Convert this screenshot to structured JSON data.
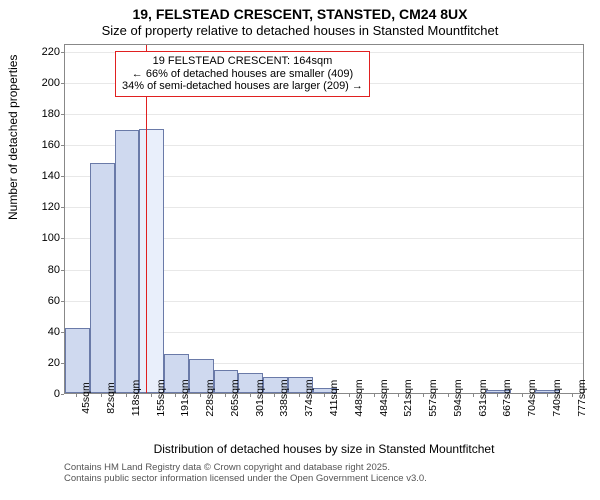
{
  "title_main": "19, FELSTEAD CRESCENT, STANSTED, CM24 8UX",
  "title_sub": "Size of property relative to detached houses in Stansted Mountfitchet",
  "y_axis_label": "Number of detached properties",
  "x_axis_label": "Distribution of detached houses by size in Stansted Mountfitchet",
  "footer_line1": "Contains HM Land Registry data © Crown copyright and database right 2025.",
  "footer_line2": "Contains public sector information licensed under the Open Government Licence v3.0.",
  "chart": {
    "type": "histogram",
    "background_color": "#ffffff",
    "grid_color": "#e8e8e8",
    "axis_color": "#888888",
    "ylim": [
      0,
      225
    ],
    "ytick_step": 20,
    "yticks": [
      0,
      20,
      40,
      60,
      80,
      100,
      120,
      140,
      160,
      180,
      200,
      220
    ],
    "x_categories": [
      "45sqm",
      "82sqm",
      "118sqm",
      "155sqm",
      "191sqm",
      "228sqm",
      "265sqm",
      "301sqm",
      "338sqm",
      "374sqm",
      "411sqm",
      "448sqm",
      "484sqm",
      "521sqm",
      "557sqm",
      "594sqm",
      "631sqm",
      "667sqm",
      "704sqm",
      "740sqm",
      "777sqm"
    ],
    "x_bin_width": 36.5,
    "x_start": 45,
    "values": [
      42,
      148,
      169,
      170,
      25,
      22,
      15,
      13,
      10,
      10,
      3,
      0,
      0,
      0,
      0,
      0,
      0,
      2,
      0,
      2,
      0
    ],
    "bar_fill": "#cfd9ef",
    "bar_stroke": "#6a7aa8",
    "highlight_index": 3,
    "highlight_fill": "#e9effb",
    "highlight_vline_color": "#e02020",
    "highlight_vline_x": 164,
    "annotation": {
      "line1": "19 FELSTEAD CRESCENT: 164sqm",
      "line2": "← 66% of detached houses are smaller (409)",
      "line3": "34% of semi-detached houses are larger (209) →",
      "border_color": "#e02020",
      "background": "#ffffff",
      "fontsize": 11
    },
    "tick_fontsize": 11,
    "xtick_fontsize": 10.5,
    "label_fontsize": 12,
    "title_fontsize": 14
  }
}
